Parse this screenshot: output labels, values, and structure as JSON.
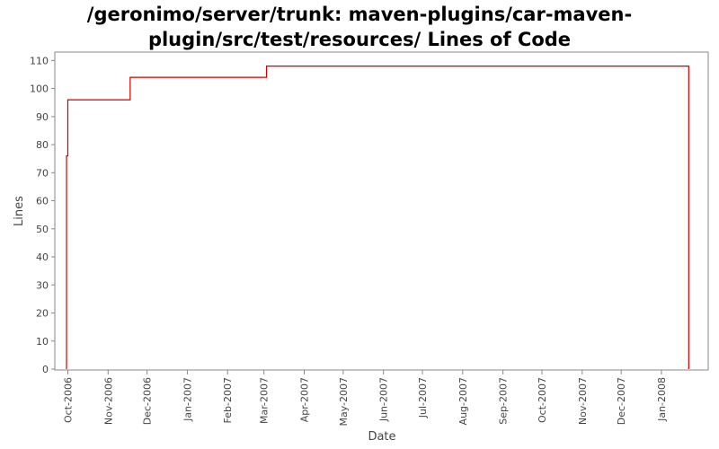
{
  "chart_data": {
    "type": "line",
    "title_lines": [
      "/geronimo/server/trunk: maven-plugins/car-maven-",
      "plugin/src/test/resources/ Lines of Code"
    ],
    "xlabel": "Date",
    "ylabel": "Lines",
    "ylim": [
      0,
      113
    ],
    "x_range": [
      "2006-09-21",
      "2008-02-06"
    ],
    "x_ticks": [
      {
        "date": "2006-10-01",
        "label": "Oct-2006"
      },
      {
        "date": "2006-11-01",
        "label": "Nov-2006"
      },
      {
        "date": "2006-12-01",
        "label": "Dec-2006"
      },
      {
        "date": "2007-01-01",
        "label": "Jan-2007"
      },
      {
        "date": "2007-02-01",
        "label": "Feb-2007"
      },
      {
        "date": "2007-03-01",
        "label": "Mar-2007"
      },
      {
        "date": "2007-04-01",
        "label": "Apr-2007"
      },
      {
        "date": "2007-05-01",
        "label": "May-2007"
      },
      {
        "date": "2007-06-01",
        "label": "Jun-2007"
      },
      {
        "date": "2007-07-01",
        "label": "Jul-2007"
      },
      {
        "date": "2007-08-01",
        "label": "Aug-2007"
      },
      {
        "date": "2007-09-01",
        "label": "Sep-2007"
      },
      {
        "date": "2007-10-01",
        "label": "Oct-2007"
      },
      {
        "date": "2007-11-01",
        "label": "Nov-2007"
      },
      {
        "date": "2007-12-01",
        "label": "Dec-2007"
      },
      {
        "date": "2008-01-01",
        "label": "Jan-2008"
      }
    ],
    "y_ticks": [
      0,
      10,
      20,
      30,
      40,
      50,
      60,
      70,
      80,
      90,
      100,
      110
    ],
    "grid": false,
    "line_color": "#cc0000",
    "series": [
      {
        "step": true,
        "points": [
          {
            "x": "2006-09-30",
            "y": 0
          },
          {
            "x": "2006-09-30",
            "y": 76
          },
          {
            "x": "2006-10-01",
            "y": 96
          },
          {
            "x": "2006-11-18",
            "y": 104
          },
          {
            "x": "2007-03-03",
            "y": 108
          },
          {
            "x": "2008-01-22",
            "y": 0
          }
        ]
      }
    ]
  }
}
